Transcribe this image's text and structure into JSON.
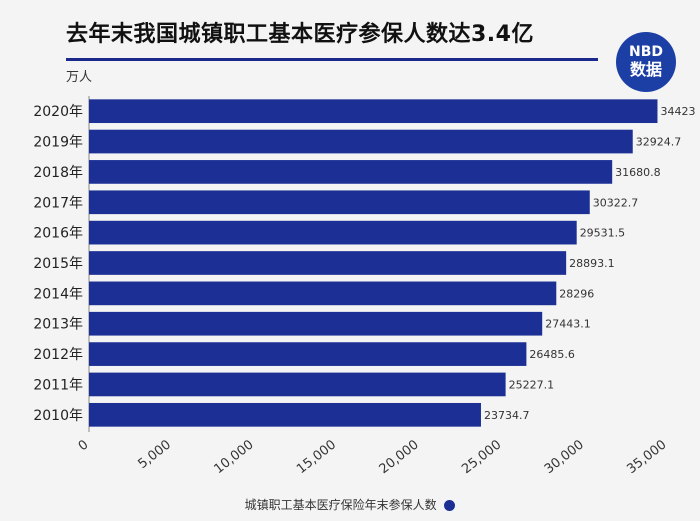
{
  "header": {
    "title": "去年末我国城镇职工基本医疗参保人数达3.4亿",
    "unit": "万人"
  },
  "logo": {
    "line1": "NBD",
    "line2": "数据"
  },
  "legend": {
    "label": "城镇职工基本医疗保险年末参保人数"
  },
  "colors": {
    "bar": "#1b2f95",
    "title_rule": "#1b2a8a",
    "logo_bg": "#1c3fa6"
  },
  "chart_data": {
    "type": "bar",
    "orientation": "horizontal",
    "categories": [
      "2020年",
      "2019年",
      "2018年",
      "2017年",
      "2016年",
      "2015年",
      "2014年",
      "2013年",
      "2012年",
      "2011年",
      "2010年"
    ],
    "series": [
      {
        "name": "城镇职工基本医疗保险年末参保人数",
        "values": [
          34423,
          32924.7,
          31680.8,
          30322.7,
          29531.5,
          28893.1,
          28296,
          27443.1,
          26485.6,
          25227.1,
          23734.7
        ],
        "labels": [
          "34423",
          "32924.7",
          "31680.8",
          "30322.7",
          "29531.5",
          "28893.1",
          "28296",
          "27443.1",
          "26485.6",
          "25227.1",
          "23734.7"
        ]
      }
    ],
    "xlim": [
      0,
      35000
    ],
    "xticks": [
      0,
      5000,
      10000,
      15000,
      20000,
      25000,
      30000,
      35000
    ],
    "xtick_labels": [
      "0",
      "5,000",
      "10,000",
      "15,000",
      "20,000",
      "25,000",
      "30,000",
      "35,000"
    ],
    "ylabel": "万人",
    "legend_position": "bottom"
  }
}
